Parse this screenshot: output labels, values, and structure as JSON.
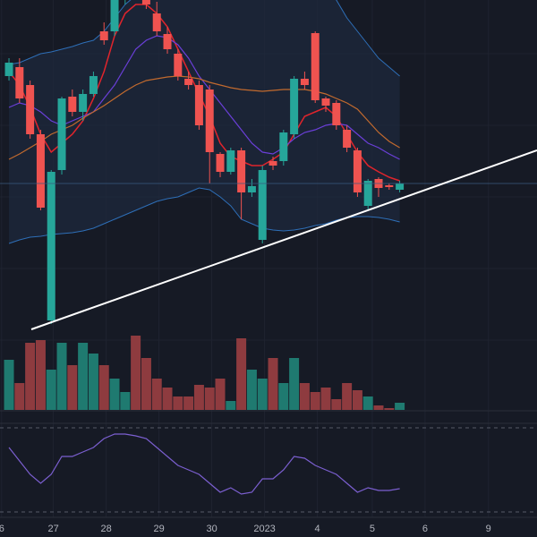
{
  "chart_data": {
    "type": "candlestick",
    "x": [
      0,
      1,
      2,
      3,
      4,
      5,
      6,
      7,
      8,
      9,
      10,
      11,
      12,
      13,
      14,
      15,
      16,
      17,
      18,
      19,
      20,
      21,
      22,
      23,
      24,
      25,
      26,
      27,
      28,
      29,
      30,
      31,
      32,
      33,
      34,
      35,
      36,
      37
    ],
    "open": [
      285,
      295,
      275,
      220,
      12,
      180,
      262,
      245,
      265,
      335,
      335,
      375,
      395,
      380,
      355,
      332,
      310,
      282,
      275,
      270,
      198,
      178,
      202,
      155,
      102,
      190,
      190,
      220,
      282,
      333,
      260,
      255,
      225,
      202,
      140,
      170,
      163,
      158
    ],
    "close": [
      300,
      260,
      220,
      138,
      178,
      260,
      245,
      265,
      285,
      325,
      375,
      395,
      380,
      365,
      335,
      315,
      285,
      275,
      230,
      200,
      178,
      202,
      155,
      162,
      180,
      185,
      222,
      282,
      275,
      258,
      252,
      230,
      205,
      155,
      168,
      160,
      161,
      165
    ],
    "high": [
      305,
      305,
      280,
      225,
      180,
      262,
      270,
      270,
      290,
      345,
      385,
      400,
      405,
      390,
      368,
      340,
      315,
      290,
      280,
      275,
      200,
      205,
      205,
      170,
      185,
      195,
      225,
      285,
      290,
      335,
      262,
      258,
      230,
      205,
      170,
      172,
      165,
      168
    ],
    "low": [
      280,
      255,
      215,
      135,
      8,
      175,
      240,
      235,
      262,
      320,
      330,
      365,
      370,
      360,
      330,
      310,
      280,
      270,
      225,
      165,
      172,
      175,
      125,
      150,
      98,
      180,
      185,
      215,
      270,
      255,
      245,
      225,
      200,
      150,
      135,
      150,
      158,
      155
    ],
    "up_color": "#26a69a",
    "down_color": "#ef5350",
    "xlim": [
      -0.85,
      50
    ],
    "ylim": [
      0,
      370
    ],
    "xticks": [
      {
        "value": -0.7,
        "label": "6"
      },
      {
        "value": 4.2,
        "label": "27"
      },
      {
        "value": 9.2,
        "label": "28"
      },
      {
        "value": 14.2,
        "label": "29"
      },
      {
        "value": 19.2,
        "label": "30"
      },
      {
        "value": 24.2,
        "label": "2023"
      },
      {
        "value": 29.2,
        "label": "4"
      },
      {
        "value": 34.4,
        "label": "5"
      },
      {
        "value": 39.4,
        "label": "6"
      },
      {
        "value": 45.4,
        "label": "9"
      }
    ],
    "lines": [
      {
        "color": "#e0242c",
        "values": [
          290,
          275,
          250,
          220,
          200,
          210,
          220,
          235,
          260,
          290,
          330,
          355,
          365,
          365,
          355,
          340,
          315,
          290,
          265,
          240,
          210,
          195,
          190,
          185,
          185,
          192,
          200,
          220,
          240,
          245,
          250,
          240,
          220,
          200,
          185,
          178,
          172,
          168
        ]
      },
      {
        "color": "#6a3fd8",
        "values": [
          250,
          255,
          252,
          245,
          235,
          230,
          235,
          240,
          245,
          260,
          275,
          295,
          315,
          325,
          330,
          328,
          320,
          305,
          285,
          270,
          255,
          240,
          225,
          210,
          200,
          198,
          205,
          215,
          222,
          225,
          230,
          232,
          230,
          220,
          210,
          205,
          198,
          192
        ]
      },
      {
        "color": "#c26a2e",
        "values": [
          192,
          198,
          205,
          212,
          220,
          225,
          230,
          238,
          245,
          252,
          260,
          268,
          275,
          280,
          282,
          284,
          285,
          284,
          282,
          278,
          275,
          272,
          270,
          269,
          268,
          269,
          270,
          270,
          270,
          268,
          265,
          260,
          255,
          248,
          235,
          222,
          212,
          205
        ]
      }
    ],
    "bands": {
      "color": "#2e6fb8",
      "upper": [
        298,
        300,
        305,
        310,
        312,
        315,
        318,
        322,
        325,
        335,
        350,
        365,
        375,
        382,
        388,
        392,
        395,
        398,
        400,
        400,
        400,
        400,
        400,
        400,
        400,
        400,
        400,
        398,
        392,
        385,
        378,
        370,
        350,
        335,
        320,
        305,
        295,
        285
      ],
      "lower": [
        98,
        102,
        105,
        106,
        108,
        109,
        110,
        112,
        115,
        120,
        125,
        130,
        135,
        140,
        145,
        148,
        150,
        155,
        160,
        158,
        150,
        140,
        125,
        120,
        115,
        113,
        112,
        113,
        115,
        118,
        120,
        124,
        127,
        128,
        128,
        127,
        125,
        122
      ]
    },
    "volume": [
      56,
      30,
      75,
      78,
      45,
      75,
      50,
      75,
      63,
      50,
      35,
      20,
      83,
      58,
      35,
      25,
      15,
      15,
      28,
      25,
      35,
      10,
      80,
      45,
      35,
      58,
      30,
      58,
      30,
      20,
      25,
      12,
      30,
      22,
      15,
      5,
      2,
      8
    ],
    "volume_ylim": [
      0,
      100
    ],
    "volume_up_color": "#1f7a70",
    "volume_down_color": "#8e3b3f",
    "oscillator": {
      "color": "#7b5fd0",
      "values": [
        80,
        65,
        50,
        40,
        50,
        70,
        70,
        75,
        80,
        90,
        95,
        95,
        93,
        90,
        80,
        70,
        60,
        55,
        50,
        40,
        30,
        35,
        28,
        30,
        45,
        45,
        55,
        70,
        68,
        60,
        55,
        50,
        40,
        30,
        35,
        32,
        32,
        34
      ],
      "ylim": [
        0,
        105
      ]
    }
  }
}
